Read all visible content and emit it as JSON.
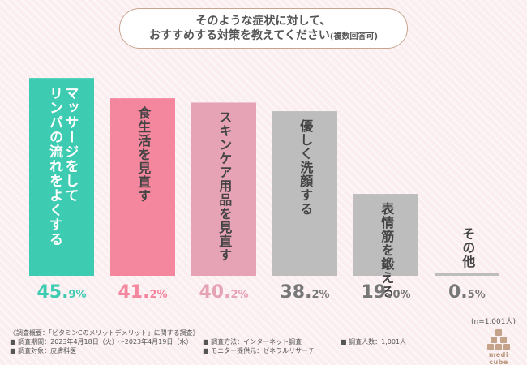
{
  "question": {
    "line1": "そのような症状に対して、",
    "line2_main": "おすすめする対策を教えてください",
    "line2_sub": "(複数回答可)"
  },
  "chart_data": {
    "type": "bar",
    "categories": [
      "リンパの流れをよくするマッサージをして",
      "食生活を見直す",
      "スキンケア用品を見直す",
      "優しく洗顔する",
      "表情筋を鍛える",
      "その他"
    ],
    "label_lines": [
      [
        "マッサージをして",
        "リンパの流れをよくする"
      ],
      [
        "食生活を見直す"
      ],
      [
        "スキンケア用品を見直す"
      ],
      [
        "優しく洗顔する"
      ],
      [
        "表情筋を鍛える"
      ],
      [
        "その他"
      ]
    ],
    "values": [
      45.9,
      41.2,
      40.2,
      38.2,
      19.0,
      0.5
    ],
    "value_labels": [
      [
        "45.",
        "9%"
      ],
      [
        "41.",
        "2%"
      ],
      [
        "40.",
        "2%"
      ],
      [
        "38.",
        "2%"
      ],
      [
        "19.",
        "0%"
      ],
      [
        "0.",
        "5%"
      ]
    ],
    "bar_colors": [
      "#3dcbb1",
      "#f4869e",
      "#e6a3b6",
      "#bdbdbd",
      "#bdbdbd",
      "#bdbdbd"
    ],
    "label_colors": [
      "#ffffff",
      "#444444",
      "#444444",
      "#444444",
      "#444444",
      "#444444"
    ],
    "value_colors": [
      "#3dcbb1",
      "#f4869e",
      "#e6a3b6",
      "#777777",
      "#777777",
      "#777777"
    ],
    "ylim": [
      0,
      48
    ]
  },
  "sample_note": "(n=1,001人)",
  "footer": {
    "overview": "《調査概要：「ビタミンCのメリットデメリット」に関する調査》",
    "period": "■ 調査期間：2023年4月18日（火）～2023年4月19日（水）",
    "method": "■ 調査方法：インターネット調査",
    "count": "■ 調査人数：1,001人",
    "target": "■ 調査対象：皮膚科医",
    "provider": "■ モニター提供元：ゼネラルリサーチ"
  },
  "brand": {
    "name": "medi cube",
    "color": "#b9977d"
  }
}
